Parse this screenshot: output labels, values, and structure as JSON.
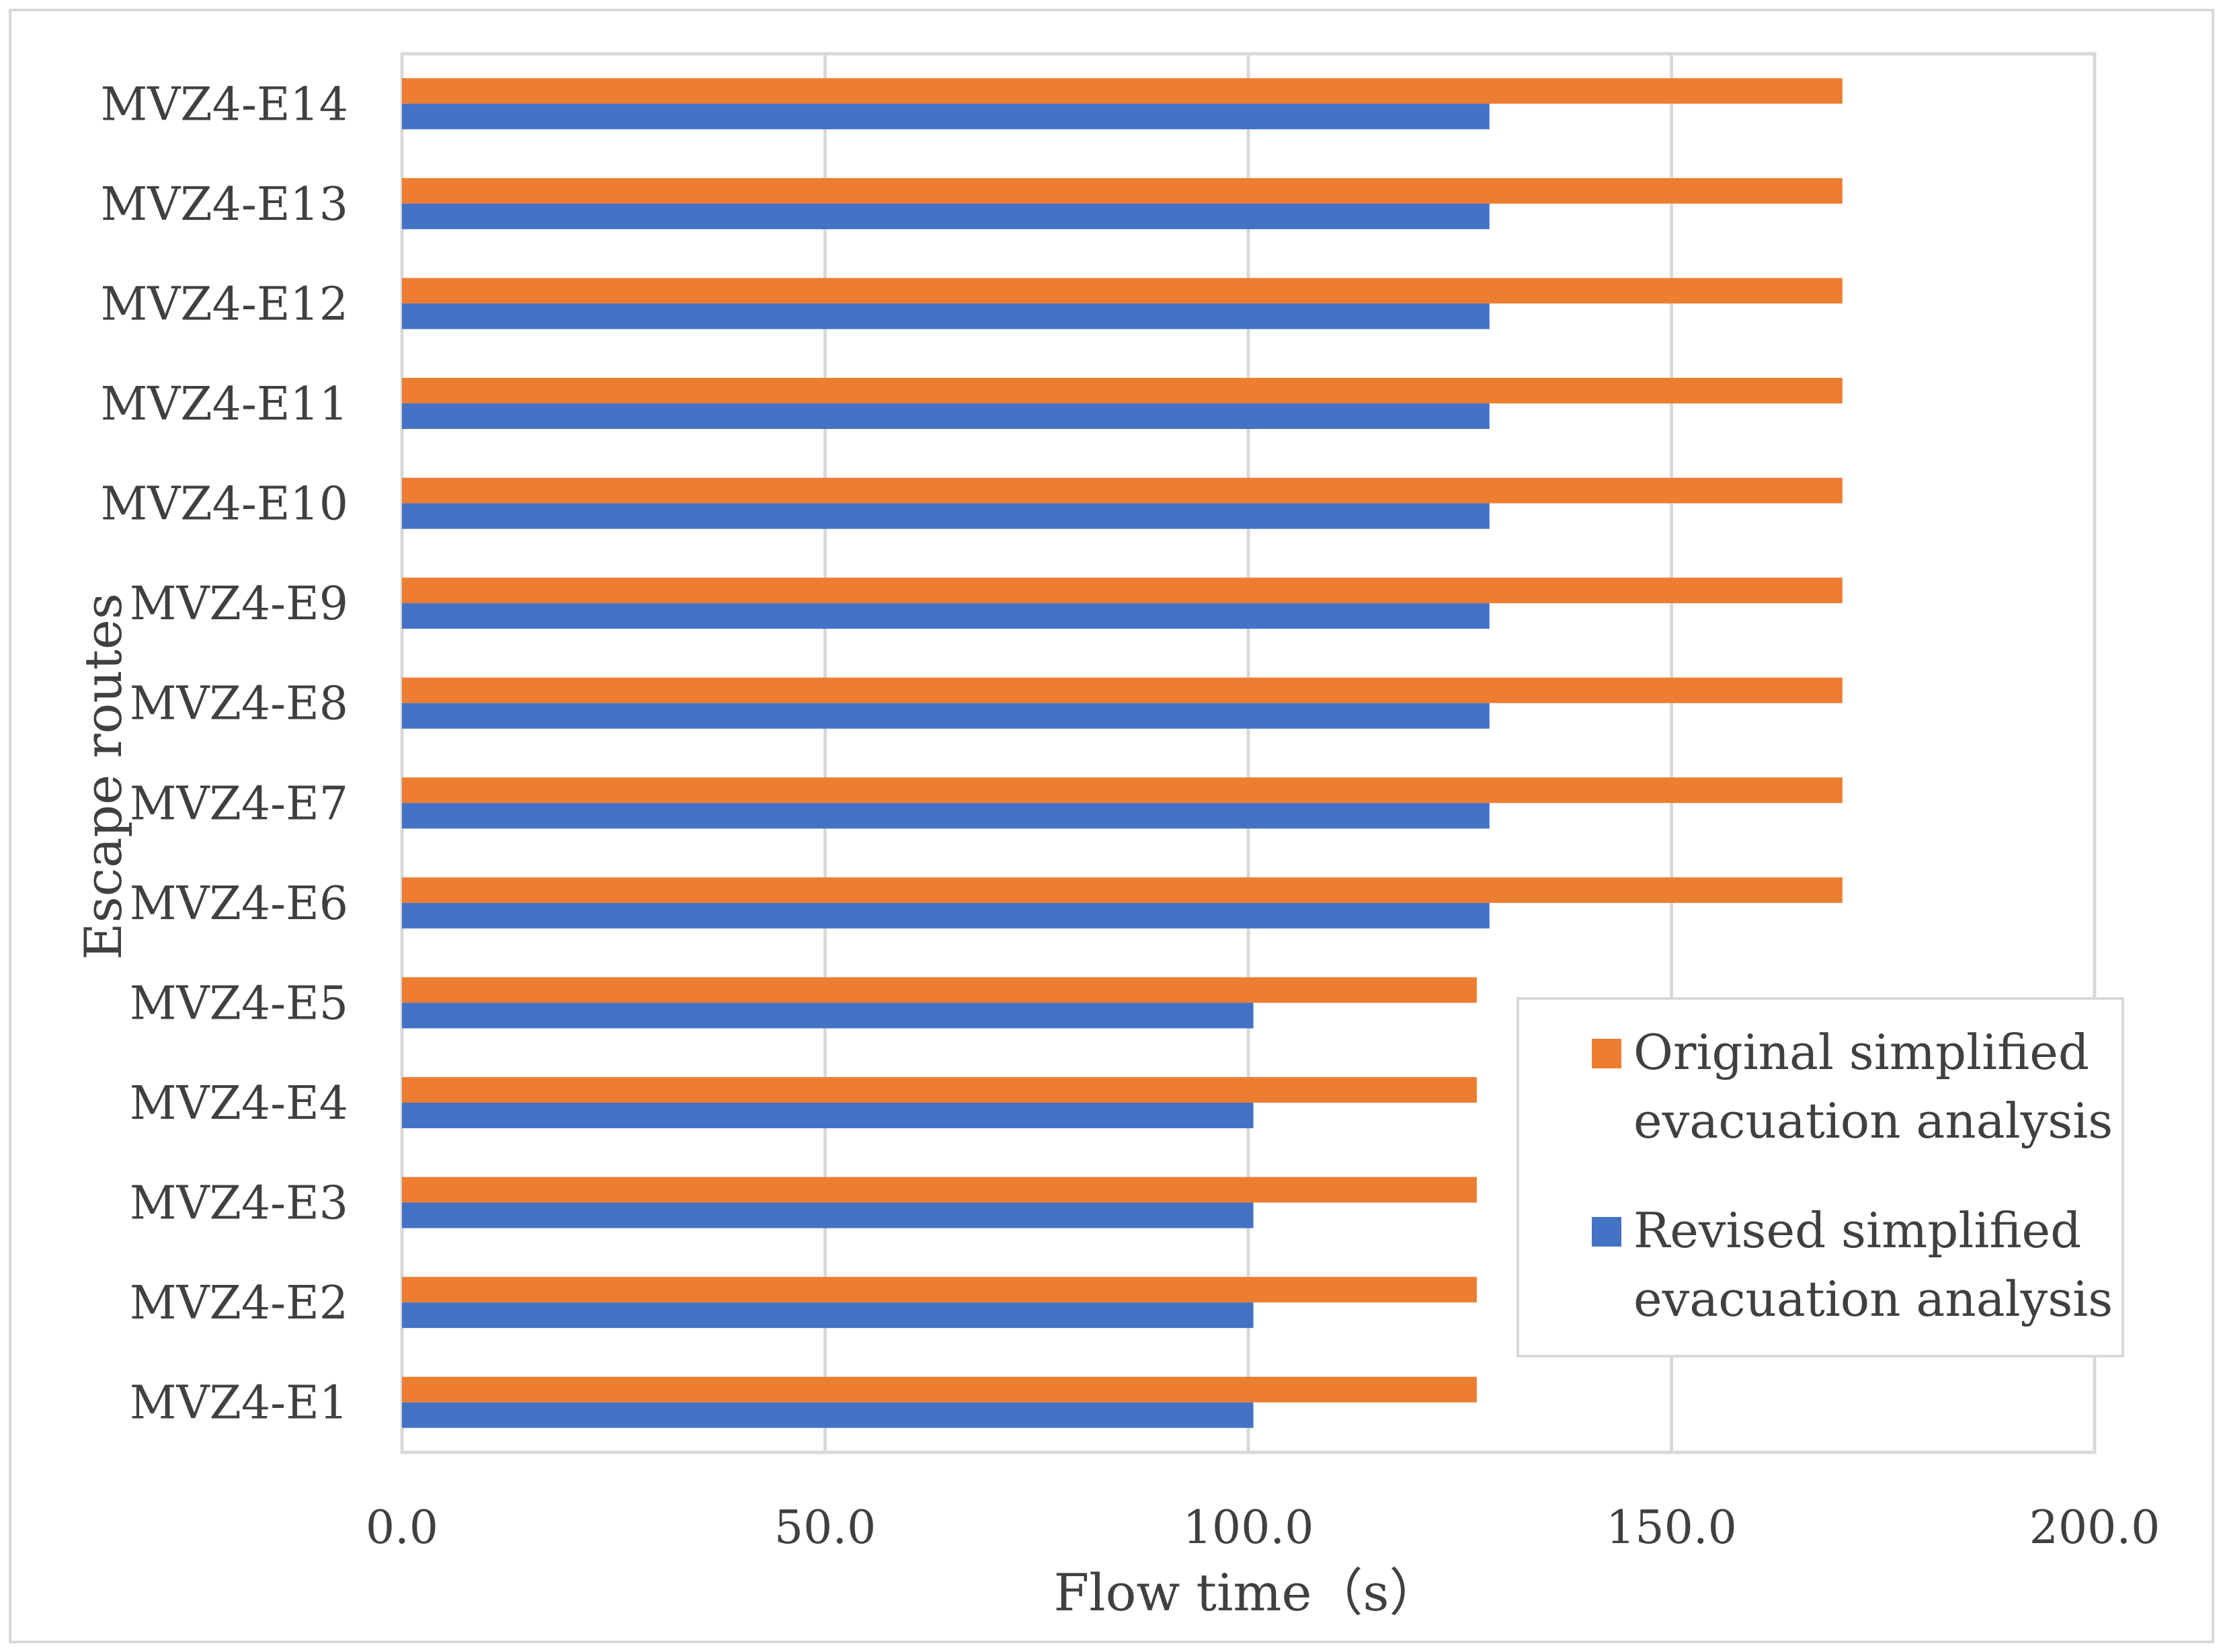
{
  "chart_data": {
    "type": "bar",
    "orientation": "horizontal",
    "title": "",
    "xlabel": "Flow time（s）",
    "ylabel": "Escape routes",
    "xlim": [
      0,
      200
    ],
    "x_ticks": [
      "0.0",
      "50.0",
      "100.0",
      "150.0",
      "200.0"
    ],
    "grid": true,
    "legend_position": "bottom-right",
    "categories": [
      "MVZ4-E1",
      "MVZ4-E2",
      "MVZ4-E3",
      "MVZ4-E4",
      "MVZ4-E5",
      "MVZ4-E6",
      "MVZ4-E7",
      "MVZ4-E8",
      "MVZ4-E9",
      "MVZ4-E10",
      "MVZ4-E11",
      "MVZ4-E12",
      "MVZ4-E13",
      "MVZ4-E14"
    ],
    "series": [
      {
        "name": "Original simplified evacuation analysis",
        "legend_lines": [
          "Original simplified",
          "evacuation analysis"
        ],
        "color": "#ED7D31",
        "values": [
          127,
          127,
          127,
          127,
          127,
          170.2,
          170.2,
          170.2,
          170.2,
          170.2,
          170.2,
          170.2,
          170.2,
          170.2
        ]
      },
      {
        "name": "Revised simplified evacuation analysis",
        "legend_lines": [
          "Revised simplified",
          "evacuation analysis"
        ],
        "color": "#4472C4",
        "values": [
          100.6,
          100.6,
          100.6,
          100.6,
          100.6,
          128.5,
          128.5,
          128.5,
          128.5,
          128.5,
          128.5,
          128.5,
          128.5,
          128.5
        ]
      }
    ]
  }
}
